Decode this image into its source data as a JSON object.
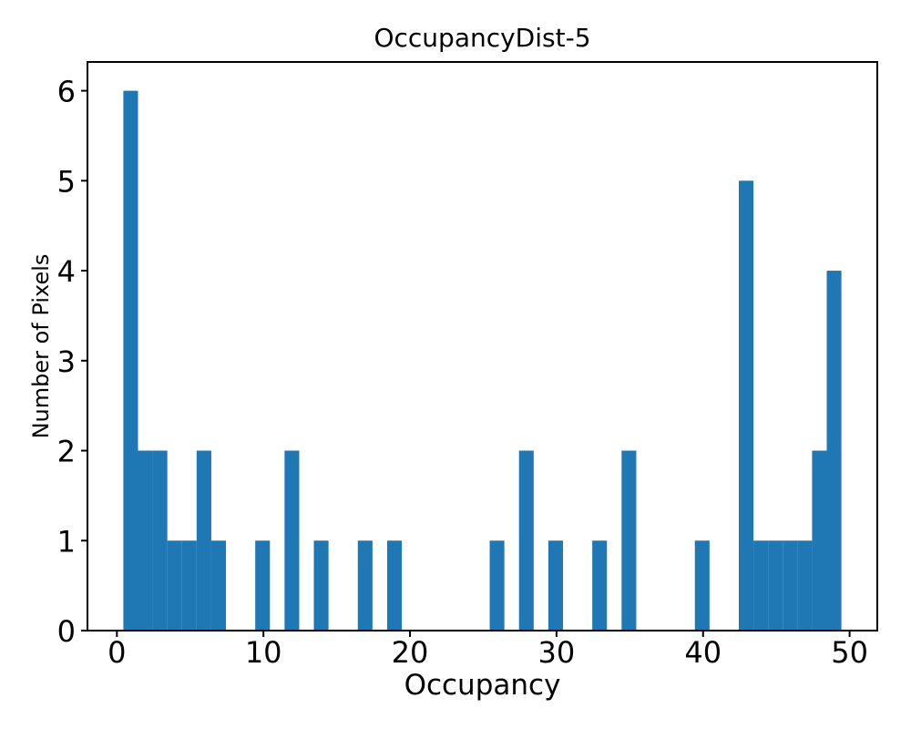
{
  "figure": {
    "background": "#ffffff"
  },
  "chart_data": {
    "type": "bar",
    "subtype": "histogram",
    "title": "OccupancyDist-5",
    "xlabel": "Occupancy",
    "ylabel": "Number of Pixels",
    "bar_color": "#1f77b4",
    "axis_color": "#000000",
    "background": "#ffffff",
    "grid": false,
    "legend": null,
    "bin_start": 0.44,
    "bin_width": 1.0,
    "counts": [
      6,
      2,
      2,
      1,
      1,
      2,
      1,
      0,
      0,
      1,
      0,
      2,
      0,
      1,
      0,
      0,
      1,
      0,
      1,
      0,
      0,
      0,
      0,
      0,
      0,
      1,
      0,
      2,
      0,
      1,
      0,
      0,
      1,
      0,
      2,
      0,
      0,
      0,
      0,
      1,
      0,
      0,
      5,
      1,
      1,
      1,
      1,
      2,
      4
    ],
    "xticks": [
      0,
      10,
      20,
      30,
      40,
      50
    ],
    "yticks": [
      0,
      1,
      2,
      3,
      4,
      5,
      6
    ],
    "xlim": [
      -2.01,
      51.89
    ],
    "ylim": [
      0,
      6.32
    ]
  }
}
